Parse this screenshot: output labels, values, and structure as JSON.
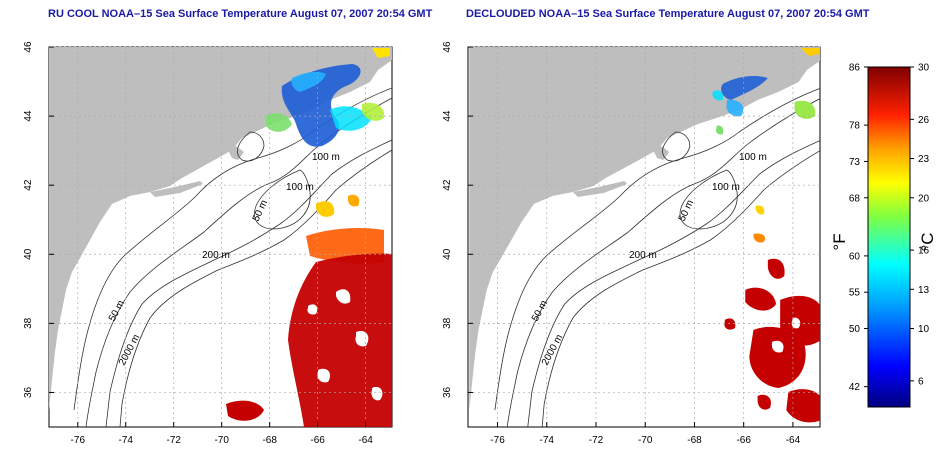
{
  "maps": [
    {
      "title": "RU COOL NOAA–15 Sea Surface Temperature August 07, 2007 20:54 GMT",
      "variant": "cool"
    },
    {
      "title": "DECLOUDED NOAA–15 Sea Surface Temperature August 07, 2007 20:54 GMT",
      "variant": "declouded"
    }
  ],
  "axes": {
    "lon_ticks": [
      -76,
      -74,
      -72,
      -70,
      -68,
      -66,
      -64
    ],
    "lat_ticks": [
      46,
      44,
      42,
      40,
      38,
      36
    ],
    "lon_range": [
      -77.2,
      -62.9
    ],
    "lat_range": [
      35.0,
      46.0
    ]
  },
  "contour_labels": [
    "100 m",
    "100 m",
    "50 m",
    "200 m",
    "50 m",
    "2000 m"
  ],
  "colorbar": {
    "fahrenheit_ticks": [
      "86",
      "78",
      "73",
      "68",
      "60",
      "55",
      "50",
      "42"
    ],
    "celsius_ticks": [
      "30",
      "26",
      "23",
      "20",
      "16",
      "13",
      "10",
      "6"
    ],
    "fahrenheit_unit": "°F",
    "celsius_unit": "°C",
    "range_c": [
      4,
      30
    ]
  },
  "colors": {
    "land": "#bebebe",
    "ocean": "#ffffff",
    "title": "#1a1aa6",
    "warm": "#c40000",
    "cold": "#1f5fd6"
  }
}
